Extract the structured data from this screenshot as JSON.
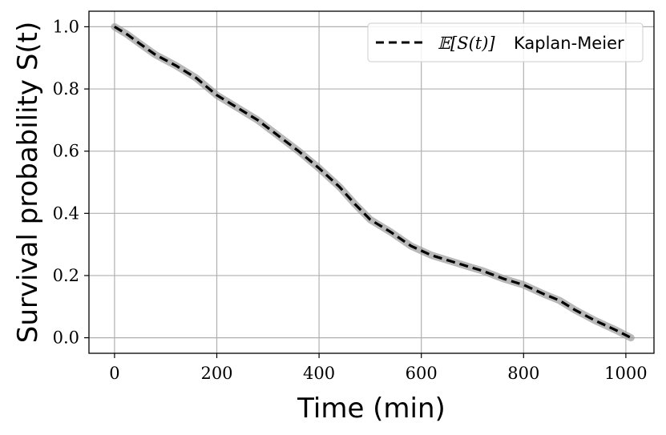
{
  "chart_data": {
    "type": "line",
    "xlabel": "Time (min)",
    "ylabel": "Survival probability S(t)",
    "xlim": [
      -50,
      1055
    ],
    "ylim": [
      -0.05,
      1.05
    ],
    "xticks": [
      0,
      200,
      400,
      600,
      800,
      1000
    ],
    "xtick_labels": [
      "0",
      "200",
      "400",
      "600",
      "800",
      "1000"
    ],
    "yticks": [
      0.0,
      0.2,
      0.4,
      0.6,
      0.8,
      1.0
    ],
    "ytick_labels": [
      "0.0",
      "0.2",
      "0.4",
      "0.6",
      "0.8",
      "1.0"
    ],
    "grid": true,
    "legend": {
      "position": "top-right",
      "entries": [
        {
          "math_label": "𝔼[S(t)]",
          "label": "Kaplan-Meier",
          "style": "dashed",
          "color": "#000000"
        }
      ]
    },
    "band": {
      "color": "#9a9a9a",
      "opacity": 0.7
    },
    "series": [
      {
        "style": "dashed",
        "color": "#000000",
        "x": [
          0,
          25,
          50,
          80,
          120,
          160,
          200,
          240,
          280,
          320,
          360,
          400,
          440,
          470,
          500,
          540,
          580,
          620,
          660,
          700,
          720,
          760,
          800,
          840,
          870,
          900,
          940,
          980,
          1010
        ],
        "y": [
          1.0,
          0.975,
          0.945,
          0.91,
          0.875,
          0.835,
          0.78,
          0.74,
          0.7,
          0.65,
          0.6,
          0.545,
          0.485,
          0.43,
          0.38,
          0.34,
          0.295,
          0.265,
          0.245,
          0.225,
          0.215,
          0.19,
          0.17,
          0.14,
          0.12,
          0.09,
          0.055,
          0.025,
          0.0
        ]
      }
    ]
  }
}
